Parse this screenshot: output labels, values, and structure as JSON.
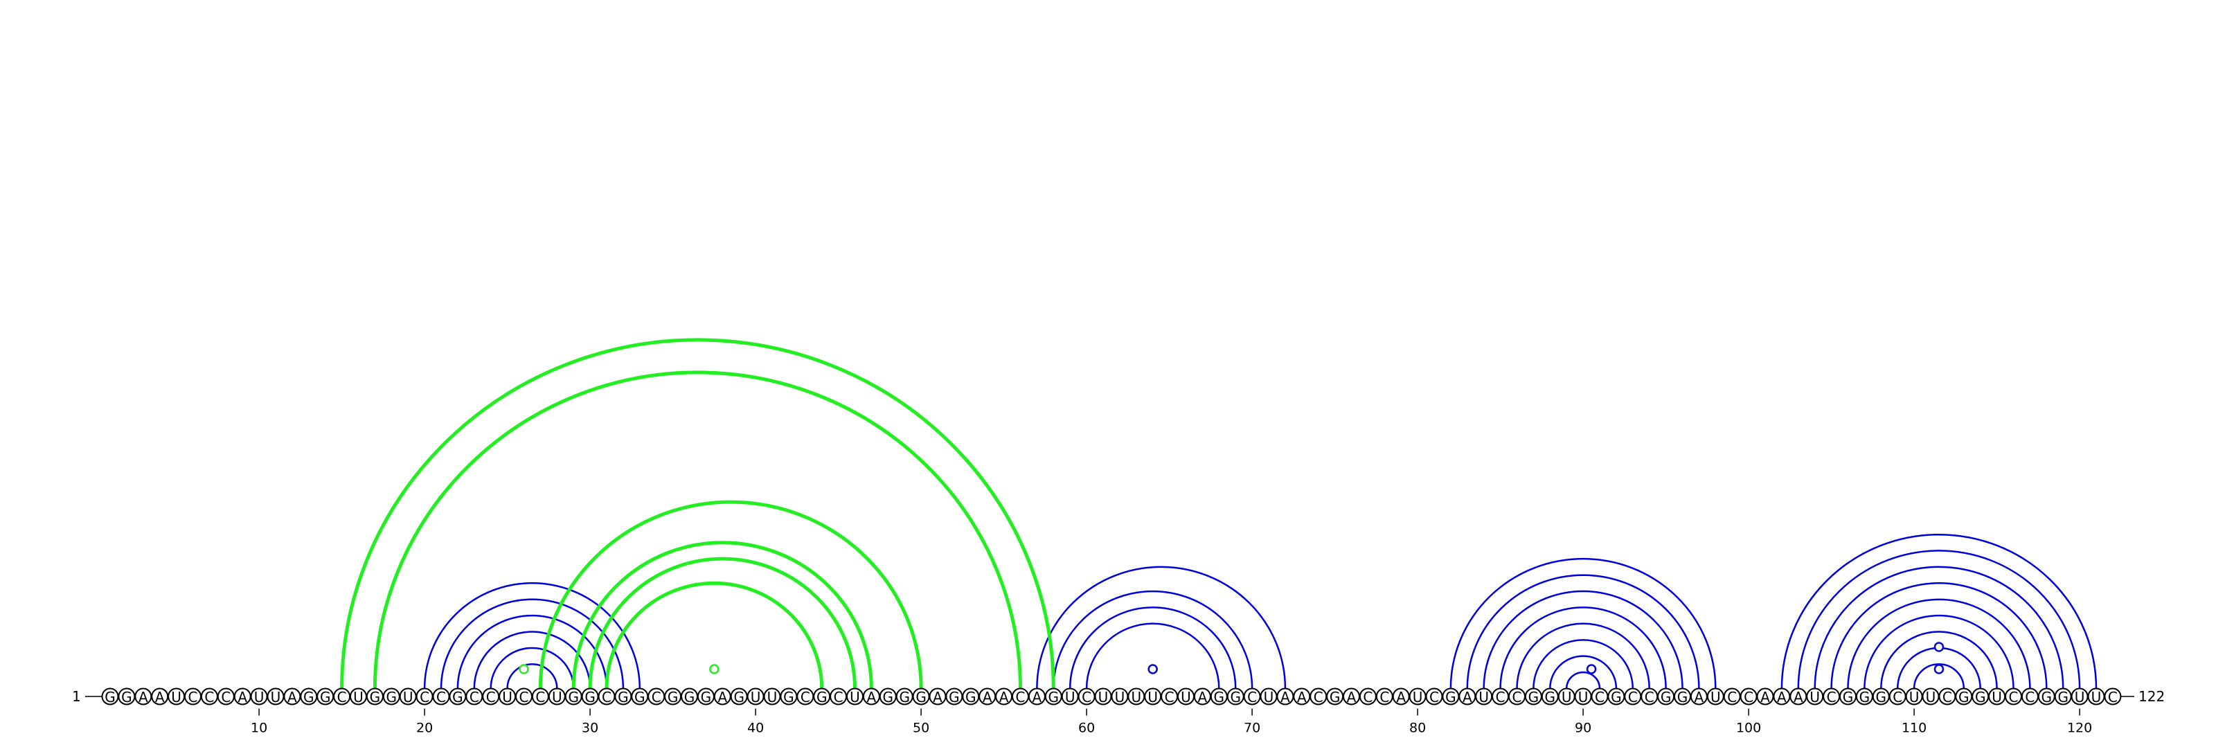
{
  "sequence": "GGAAUCCCAUUAGGCUGGUCCGCCUCCUGGCGGCGGGAGUUGCGCUAGGGAGGAACAGUCUUUUCUAGGCUAACGACCAUCGAUCCGGUUCGCCGGAUCCAAAUCGGGCUUCGGUCCGGUUC",
  "start_label": "1",
  "end_label": "122",
  "ticks": [
    "10",
    "20",
    "30",
    "40",
    "50",
    "60",
    "70",
    "80",
    "90",
    "100",
    "110",
    "120"
  ],
  "colors": {
    "green": "#22ee22",
    "blue": "#0000dd",
    "tick": "#000000"
  },
  "arc_groups": [
    {
      "color": "blue",
      "pairs": [
        [
          20,
          33
        ],
        [
          21,
          32
        ],
        [
          22,
          31
        ],
        [
          23,
          30
        ],
        [
          24,
          29
        ],
        [
          25,
          28
        ]
      ]
    },
    {
      "color": "blue",
      "pairs": [
        [
          57,
          72
        ],
        [
          58,
          70
        ],
        [
          59,
          69
        ],
        [
          60,
          68
        ]
      ]
    },
    {
      "color": "blue",
      "pairs": [
        [
          82,
          98
        ],
        [
          83,
          97
        ],
        [
          84,
          96
        ],
        [
          85,
          95
        ],
        [
          86,
          94
        ],
        [
          87,
          93
        ],
        [
          88,
          92
        ],
        [
          89,
          91
        ]
      ]
    },
    {
      "color": "blue",
      "pairs": [
        [
          102,
          121
        ],
        [
          103,
          120
        ],
        [
          104,
          119
        ],
        [
          105,
          118
        ],
        [
          106,
          117
        ],
        [
          107,
          116
        ],
        [
          108,
          115
        ],
        [
          109,
          114
        ],
        [
          110,
          113
        ]
      ]
    },
    {
      "color": "green",
      "pairs": [
        [
          15,
          58
        ],
        [
          17,
          56
        ]
      ]
    },
    {
      "color": "green",
      "pairs": [
        [
          27,
          50
        ],
        [
          29,
          47
        ],
        [
          30,
          46
        ],
        [
          31,
          44
        ]
      ]
    }
  ],
  "hairpin_markers": [
    {
      "color": "blue",
      "pos": 64
    },
    {
      "color": "blue",
      "pos": 90.5
    },
    {
      "color": "blue",
      "pos": 111.5
    },
    {
      "color": "blue",
      "pos": 111.5,
      "level": 2
    },
    {
      "color": "green",
      "pos": 37.5
    },
    {
      "color": "green",
      "pos": 26
    }
  ]
}
